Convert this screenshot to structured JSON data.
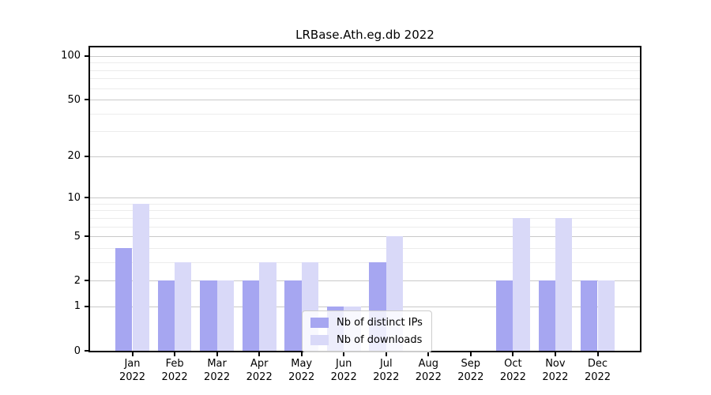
{
  "chart_data": {
    "type": "bar",
    "title": "LRBase.Ath.eg.db 2022",
    "categories": [
      "Jan",
      "Feb",
      "Mar",
      "Apr",
      "May",
      "Jun",
      "Jul",
      "Aug",
      "Sep",
      "Oct",
      "Nov",
      "Dec"
    ],
    "x_sublabel": "2022",
    "series": [
      {
        "name": "Nb of distinct IPs",
        "color": "#a6a6f1",
        "values": [
          4,
          2,
          2,
          2,
          2,
          1,
          3,
          0,
          0,
          2,
          2,
          2
        ]
      },
      {
        "name": "Nb of downloads",
        "color": "#d9d9f8",
        "values": [
          9,
          3,
          2,
          3,
          3,
          1,
          5,
          0,
          0,
          7,
          7,
          2
        ]
      }
    ],
    "yticks": [
      0,
      1,
      2,
      5,
      10,
      20,
      50,
      100
    ],
    "minor_gridlines": [
      3,
      4,
      6,
      7,
      8,
      9,
      30,
      40,
      60,
      70,
      80,
      90
    ],
    "scale": "log1p",
    "ylim": [
      0,
      113
    ],
    "grid": true,
    "legend_position": "lower center"
  },
  "colors": {
    "bar_dark": "#a6a6f1",
    "bar_light": "#d9d9f8",
    "grid_major": "#c9c9c9",
    "grid_minor": "#ececec",
    "spine": "#000000",
    "legend_border": "#cccccc"
  }
}
